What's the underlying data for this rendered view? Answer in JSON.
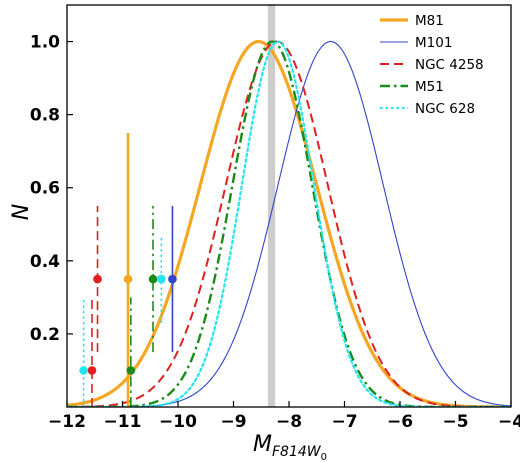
{
  "chart_data": {
    "type": "line",
    "xlabel_main": "M",
    "xlabel_sub": "F814W",
    "xlabel_subsub": "0",
    "ylabel": "N",
    "xlim": [
      -12,
      -4
    ],
    "ylim": [
      0,
      1.1
    ],
    "xticks": [
      -12,
      -11,
      -10,
      -9,
      -8,
      -7,
      -6,
      -5,
      -4
    ],
    "xtick_labels": [
      "−12",
      "−11",
      "−10",
      "−9",
      "−8",
      "−7",
      "−6",
      "−5",
      "−4"
    ],
    "yticks": [
      0.2,
      0.4,
      0.6,
      0.8,
      1.0
    ],
    "ytick_labels": [
      "0.2",
      "0.4",
      "0.6",
      "0.8",
      "1.0"
    ],
    "legend_position": "top-right",
    "band": {
      "x0": -8.38,
      "x1": -8.25,
      "color": "#cccccc"
    },
    "series": [
      {
        "name": "M81",
        "color": "#f5a623",
        "dash": "solid",
        "width": 3.2,
        "mu": -8.55,
        "sigma": 1.05,
        "markers": [
          {
            "x": -10.9,
            "y": 0.35,
            "err": 0.4
          }
        ]
      },
      {
        "name": "M101",
        "color": "#3344cc",
        "dash": "solid",
        "width": 1.1,
        "mu": -7.25,
        "sigma": 0.95,
        "markers": [
          {
            "x": -10.1,
            "y": 0.35,
            "err": 0.2
          }
        ]
      },
      {
        "name": "NGC 4258",
        "color": "#e02020",
        "dash": "dashed",
        "width": 2.0,
        "mu": -8.22,
        "sigma": 0.92,
        "markers": [
          {
            "x": -11.45,
            "y": 0.35,
            "err": 0.2
          },
          {
            "x": -11.55,
            "y": 0.1,
            "err": 0.2
          }
        ]
      },
      {
        "name": "M51",
        "color": "#1a8a1a",
        "dash": "dashdot",
        "width": 2.4,
        "mu": -8.3,
        "sigma": 0.72,
        "markers": [
          {
            "x": -10.45,
            "y": 0.35,
            "err": 0.2
          },
          {
            "x": -10.85,
            "y": 0.1,
            "err": 0.2
          }
        ]
      },
      {
        "name": "NGC 628",
        "color": "#22e5f0",
        "dash": "dotted",
        "width": 2.2,
        "mu": -8.2,
        "sigma": 0.65,
        "markers": [
          {
            "x": -10.3,
            "y": 0.35,
            "err": 0.12
          },
          {
            "x": -11.7,
            "y": 0.1,
            "err": 0.2
          }
        ]
      }
    ]
  }
}
